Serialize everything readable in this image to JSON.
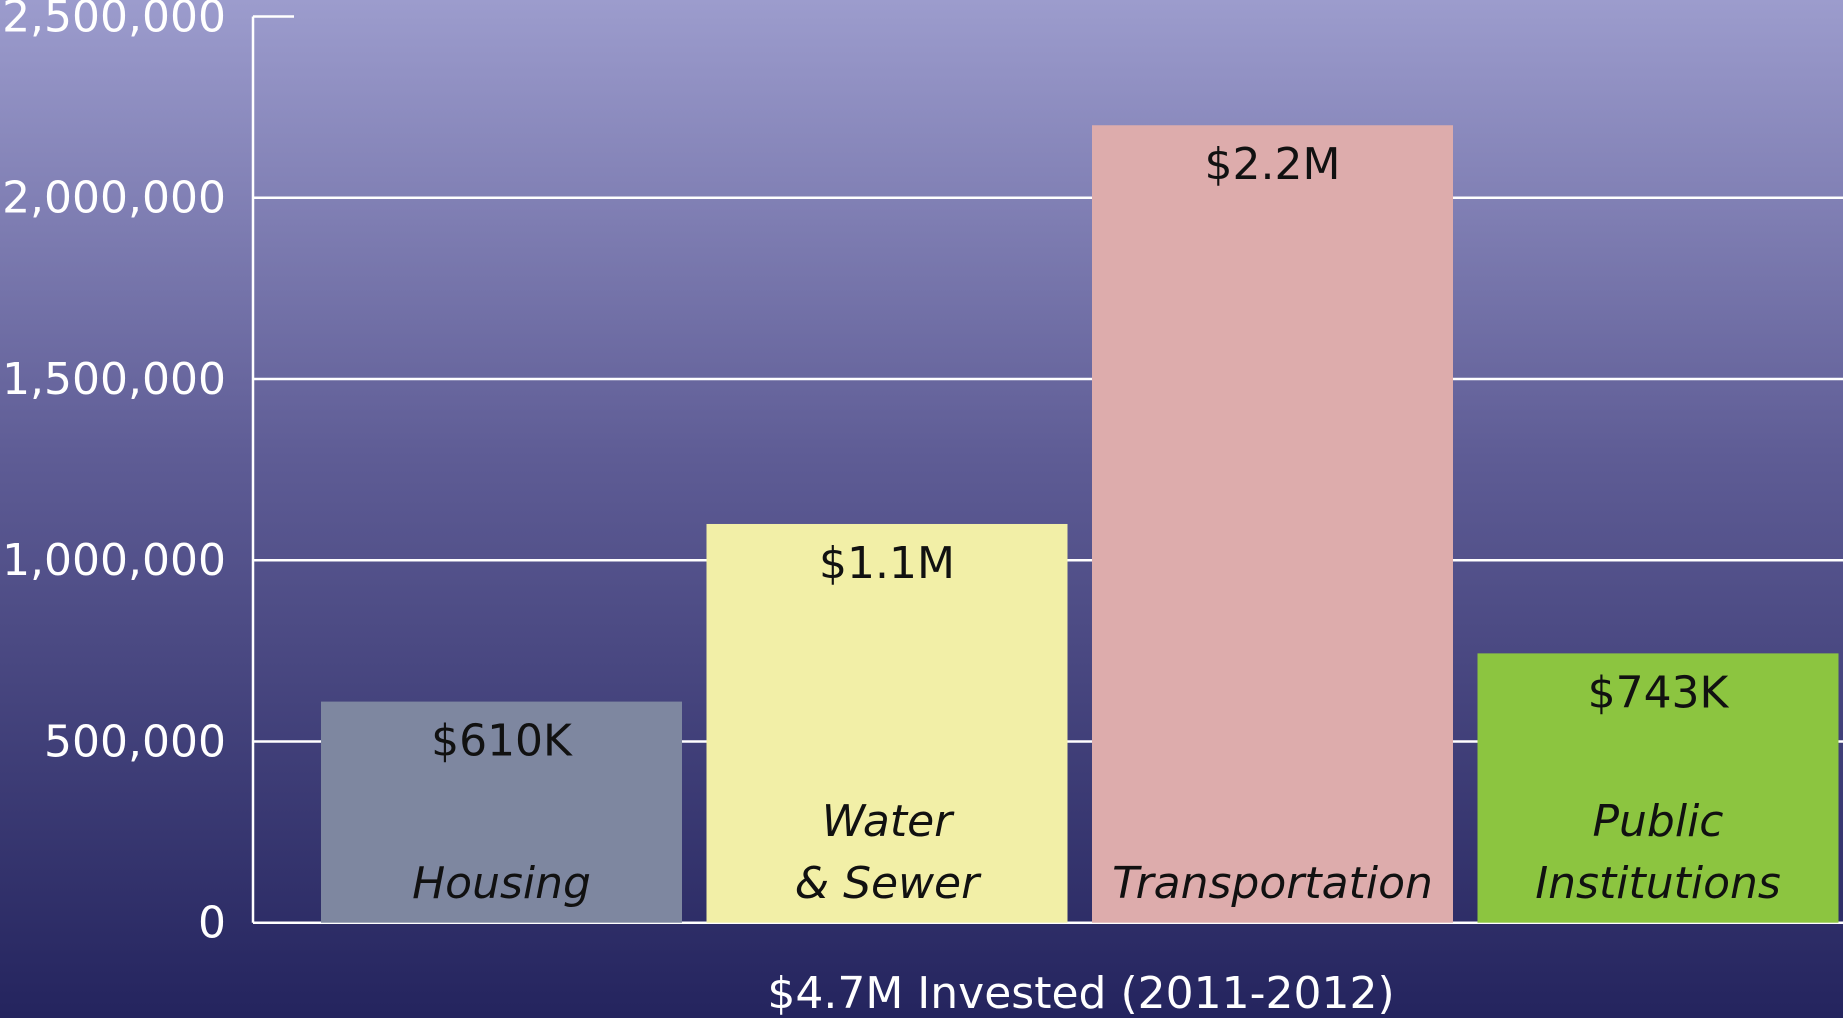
{
  "chart_data": {
    "type": "bar",
    "x_label": "$4.7M Invested (2011-2012)",
    "categories": [
      "Housing",
      "Water\n& Sewer",
      "Transportation",
      "Public\nInstitutions"
    ],
    "values": [
      610000,
      1100000,
      2200000,
      743000
    ],
    "value_labels": [
      "$610K",
      "$1.1M",
      "$2.2M",
      "$743K"
    ],
    "colors": [
      "#7e87a0",
      "#f2efa7",
      "#ddacac",
      "#8cc540"
    ],
    "ylim": [
      0,
      2500000
    ],
    "yticks": [
      0,
      {
        "value": 500000,
        "label": "500,000"
      },
      {
        "value": 1000000,
        "label": "1,000,000"
      },
      {
        "value": 1500000,
        "label": "1,500,000"
      },
      {
        "value": 2000000,
        "label": "2,000,000"
      },
      {
        "value": 2500000,
        "label": "2,500,000"
      }
    ],
    "grid": true
  }
}
